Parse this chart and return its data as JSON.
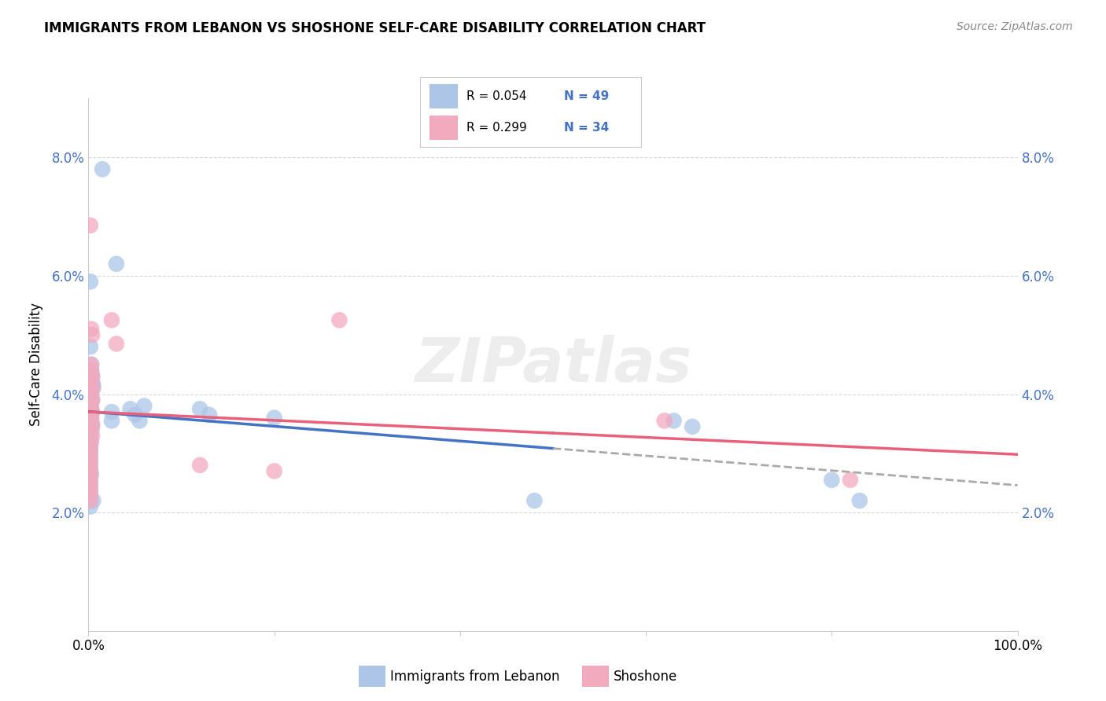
{
  "title": "IMMIGRANTS FROM LEBANON VS SHOSHONE SELF-CARE DISABILITY CORRELATION CHART",
  "source": "Source: ZipAtlas.com",
  "ylabel": "Self-Care Disability",
  "legend_r1": "R = 0.054",
  "legend_n1": "N = 49",
  "legend_r2": "R = 0.299",
  "legend_n2": "N = 34",
  "legend_label1": "Immigrants from Lebanon",
  "legend_label2": "Shoshone",
  "blue_color": "#adc6e8",
  "pink_color": "#f2aabf",
  "blue_line_color": "#4472c4",
  "pink_line_color": "#e8607a",
  "dashed_line_color": "#aaaaaa",
  "blue_scatter": [
    [
      0.5,
      2.2
    ],
    [
      1.5,
      7.8
    ],
    [
      3.0,
      6.2
    ],
    [
      0.2,
      5.9
    ],
    [
      0.2,
      4.8
    ],
    [
      0.3,
      4.5
    ],
    [
      0.3,
      4.4
    ],
    [
      0.3,
      4.35
    ],
    [
      0.4,
      4.3
    ],
    [
      0.4,
      4.2
    ],
    [
      0.5,
      4.15
    ],
    [
      0.5,
      4.1
    ],
    [
      0.3,
      3.95
    ],
    [
      0.4,
      3.9
    ],
    [
      0.2,
      3.85
    ],
    [
      0.2,
      3.8
    ],
    [
      0.3,
      3.75
    ],
    [
      0.4,
      3.7
    ],
    [
      0.3,
      3.6
    ],
    [
      0.3,
      3.5
    ],
    [
      0.4,
      3.45
    ],
    [
      0.3,
      3.4
    ],
    [
      0.2,
      3.3
    ],
    [
      0.2,
      3.2
    ],
    [
      0.2,
      3.1
    ],
    [
      0.2,
      3.05
    ],
    [
      0.2,
      2.95
    ],
    [
      0.2,
      2.85
    ],
    [
      0.2,
      2.75
    ],
    [
      0.3,
      2.65
    ],
    [
      0.2,
      2.55
    ],
    [
      0.2,
      2.45
    ],
    [
      0.2,
      2.35
    ],
    [
      0.2,
      2.25
    ],
    [
      0.2,
      2.1
    ],
    [
      2.5,
      3.7
    ],
    [
      2.5,
      3.55
    ],
    [
      4.5,
      3.75
    ],
    [
      5.0,
      3.65
    ],
    [
      5.5,
      3.55
    ],
    [
      6.0,
      3.8
    ],
    [
      12.0,
      3.75
    ],
    [
      13.0,
      3.65
    ],
    [
      20.0,
      3.6
    ],
    [
      48.0,
      2.2
    ],
    [
      63.0,
      3.55
    ],
    [
      65.0,
      3.45
    ],
    [
      80.0,
      2.55
    ],
    [
      83.0,
      2.2
    ]
  ],
  "pink_scatter": [
    [
      0.2,
      6.85
    ],
    [
      2.5,
      5.25
    ],
    [
      27.0,
      5.25
    ],
    [
      0.3,
      5.1
    ],
    [
      0.4,
      5.0
    ],
    [
      3.0,
      4.85
    ],
    [
      0.3,
      4.5
    ],
    [
      0.3,
      4.4
    ],
    [
      0.4,
      4.3
    ],
    [
      0.3,
      4.2
    ],
    [
      0.4,
      4.1
    ],
    [
      0.3,
      4.0
    ],
    [
      0.4,
      3.9
    ],
    [
      0.3,
      3.8
    ],
    [
      0.3,
      3.7
    ],
    [
      0.3,
      3.6
    ],
    [
      0.4,
      3.5
    ],
    [
      0.3,
      3.4
    ],
    [
      0.4,
      3.3
    ],
    [
      0.3,
      3.2
    ],
    [
      0.2,
      3.1
    ],
    [
      0.2,
      3.0
    ],
    [
      0.2,
      2.9
    ],
    [
      0.2,
      2.8
    ],
    [
      0.2,
      2.7
    ],
    [
      0.2,
      2.6
    ],
    [
      0.2,
      2.5
    ],
    [
      0.2,
      2.4
    ],
    [
      0.2,
      2.3
    ],
    [
      0.2,
      2.2
    ],
    [
      12.0,
      2.8
    ],
    [
      20.0,
      2.7
    ],
    [
      62.0,
      3.55
    ],
    [
      82.0,
      2.55
    ]
  ],
  "xlim": [
    0.0,
    100.0
  ],
  "ylim": [
    0.0,
    9.0
  ],
  "yticks": [
    2.0,
    4.0,
    6.0,
    8.0
  ],
  "ytick_labels": [
    "2.0%",
    "4.0%",
    "6.0%",
    "8.0%"
  ],
  "background_color": "#ffffff",
  "grid_color": "#d8d8d8"
}
